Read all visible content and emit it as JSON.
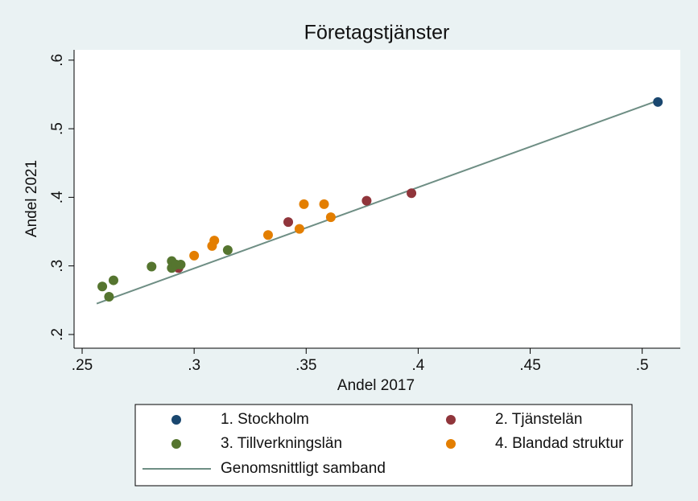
{
  "chart_data": {
    "type": "scatter",
    "title": "Företagstjänster",
    "x_label": "Andel 2017",
    "y_label": "Andel 2021",
    "xlim": [
      0.2464,
      0.517
    ],
    "ylim": [
      0.18,
      0.615
    ],
    "xticks": [
      {
        "value": 0.25,
        "label": ".25"
      },
      {
        "value": 0.3,
        "label": ".3"
      },
      {
        "value": 0.35,
        "label": ".35"
      },
      {
        "value": 0.4,
        "label": ".4"
      },
      {
        "value": 0.45,
        "label": ".45"
      },
      {
        "value": 0.5,
        "label": ".5"
      }
    ],
    "yticks": [
      {
        "value": 0.2,
        "label": ".2"
      },
      {
        "value": 0.3,
        "label": ".3"
      },
      {
        "value": 0.4,
        "label": ".4"
      },
      {
        "value": 0.5,
        "label": ".5"
      },
      {
        "value": 0.6,
        "label": ".6"
      }
    ],
    "grid": false,
    "legend_position": "bottom",
    "series": [
      {
        "name": "1. Stockholm",
        "type": "scatter",
        "color": "#1a476f",
        "x": [
          0.507
        ],
        "y": [
          0.539
        ]
      },
      {
        "name": "2. Tjänstelän",
        "type": "scatter",
        "color": "#90353b",
        "x": [
          0.342,
          0.377,
          0.397,
          0.293
        ],
        "y": [
          0.364,
          0.395,
          0.406,
          0.297
        ]
      },
      {
        "name": "3. Tillverkningslän",
        "type": "scatter",
        "color": "#55752f",
        "x": [
          0.259,
          0.264,
          0.262,
          0.281,
          0.29,
          0.29,
          0.292,
          0.294,
          0.315
        ],
        "y": [
          0.27,
          0.279,
          0.255,
          0.299,
          0.307,
          0.297,
          0.302,
          0.302,
          0.323
        ]
      },
      {
        "name": "4. Blandad struktur",
        "type": "scatter",
        "color": "#e37e00",
        "x": [
          0.3,
          0.308,
          0.309,
          0.333,
          0.347,
          0.349,
          0.358,
          0.361
        ],
        "y": [
          0.315,
          0.329,
          0.337,
          0.345,
          0.354,
          0.39,
          0.39,
          0.371
        ]
      },
      {
        "name": "Genomsnittligt samband",
        "type": "line",
        "color": "#6e8e84",
        "x": [
          0.2565,
          0.507
        ],
        "y": [
          0.245,
          0.541
        ]
      }
    ]
  }
}
